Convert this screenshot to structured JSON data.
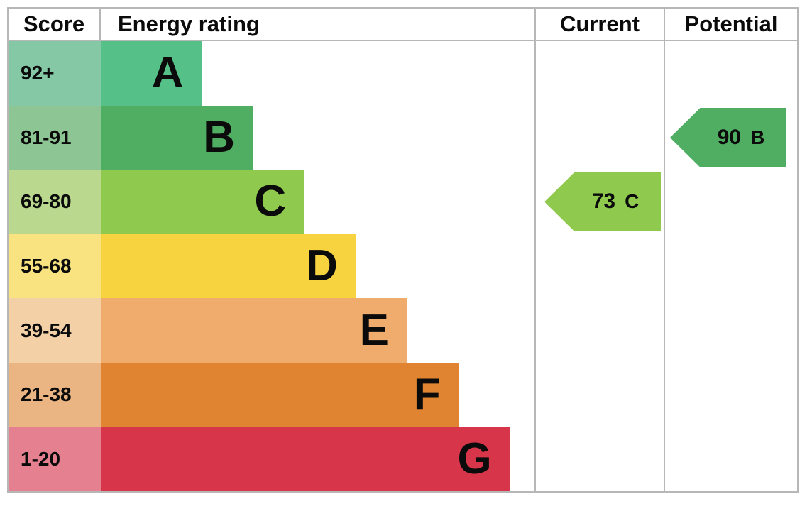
{
  "header": {
    "score": "Score",
    "rating": "Energy rating",
    "current": "Current",
    "potential": "Potential"
  },
  "colors": {
    "border": "#b7b7b7",
    "text": "#0b0b0b",
    "background": "#ffffff"
  },
  "chart_data": {
    "type": "bar",
    "title": "EPC energy efficiency rating chart",
    "categories": [
      "A",
      "B",
      "C",
      "D",
      "E",
      "F",
      "G"
    ],
    "bands": [
      {
        "score": "92+",
        "letter": "A",
        "bar_color": "#55c188",
        "score_color": "#85c8a5",
        "width_pct": 23.3
      },
      {
        "score": "81-91",
        "letter": "B",
        "bar_color": "#50ae63",
        "score_color": "#8dc595",
        "width_pct": 35.2
      },
      {
        "score": "69-80",
        "letter": "C",
        "bar_color": "#8fca4f",
        "score_color": "#bad98f",
        "width_pct": 47.0
      },
      {
        "score": "55-68",
        "letter": "D",
        "bar_color": "#f7d340",
        "score_color": "#f9e381",
        "width_pct": 58.9
      },
      {
        "score": "39-54",
        "letter": "E",
        "bar_color": "#f0ac6d",
        "score_color": "#f3d0a6",
        "width_pct": 70.7
      },
      {
        "score": "21-38",
        "letter": "F",
        "bar_color": "#e08432",
        "score_color": "#eab582",
        "width_pct": 82.6
      },
      {
        "score": "1-20",
        "letter": "G",
        "bar_color": "#d7354a",
        "score_color": "#e4808f",
        "width_pct": 94.4
      }
    ],
    "current": {
      "value": "73",
      "band": "C",
      "color": "#8fca4f"
    },
    "potential": {
      "value": "90",
      "band": "B",
      "color": "#50ae63"
    },
    "legend_position": "none",
    "grid": false
  }
}
